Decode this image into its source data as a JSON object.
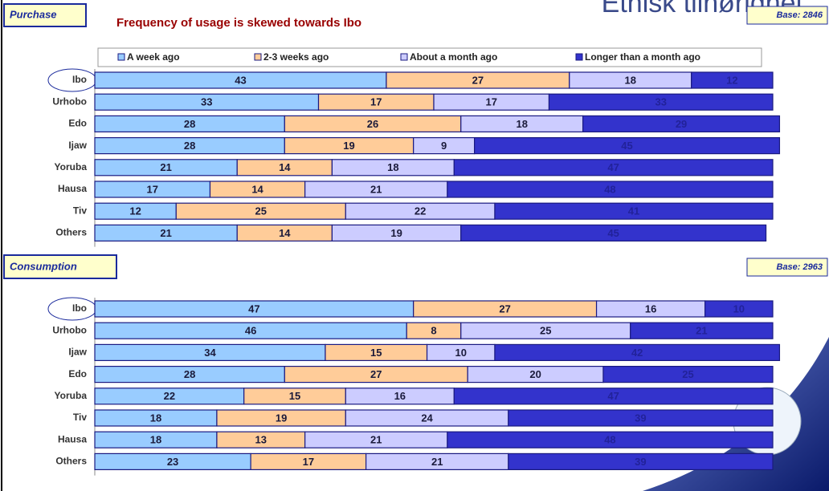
{
  "slide_title": "Etnisk tilhørighet",
  "chart_data": [
    {
      "type": "bar",
      "orientation": "horizontal",
      "stacked": true,
      "title": "Purchase",
      "subtitle": "Frequency of usage is skewed towards Ibo",
      "base": "Base: 2846",
      "categories": [
        "Ibo",
        "Urhobo",
        "Edo",
        "Ijaw",
        "Yoruba",
        "Hausa",
        "Tiv",
        "Others"
      ],
      "xlim": [
        0,
        100
      ],
      "series": [
        {
          "name": "A week ago",
          "color": "#99ccff",
          "values": [
            43,
            33,
            28,
            28,
            21,
            17,
            12,
            21
          ]
        },
        {
          "name": "2-3 weeks ago",
          "color": "#ffcc99",
          "values": [
            27,
            17,
            26,
            19,
            14,
            14,
            25,
            14
          ]
        },
        {
          "name": "About a month ago",
          "color": "#ccccff",
          "values": [
            18,
            17,
            18,
            9,
            18,
            21,
            22,
            19
          ]
        },
        {
          "name": "Longer than a month ago",
          "color": "#3333cc",
          "values": [
            12,
            33,
            29,
            45,
            47,
            48,
            41,
            45
          ]
        }
      ]
    },
    {
      "type": "bar",
      "orientation": "horizontal",
      "stacked": true,
      "title": "Consumption",
      "base": "Base: 2963",
      "categories": [
        "Ibo",
        "Urhobo",
        "Ijaw",
        "Edo",
        "Yoruba",
        "Tiv",
        "Hausa",
        "Others"
      ],
      "xlim": [
        0,
        100
      ],
      "series": [
        {
          "color": "#99ccff",
          "values": [
            47,
            46,
            34,
            28,
            22,
            18,
            18,
            23
          ]
        },
        {
          "color": "#ffcc99",
          "values": [
            27,
            8,
            15,
            27,
            15,
            19,
            13,
            17
          ]
        },
        {
          "color": "#ccccff",
          "values": [
            16,
            25,
            10,
            20,
            16,
            24,
            21,
            21
          ]
        },
        {
          "color": "#3333cc",
          "values": [
            10,
            21,
            42,
            25,
            47,
            39,
            48,
            39
          ]
        }
      ]
    }
  ]
}
